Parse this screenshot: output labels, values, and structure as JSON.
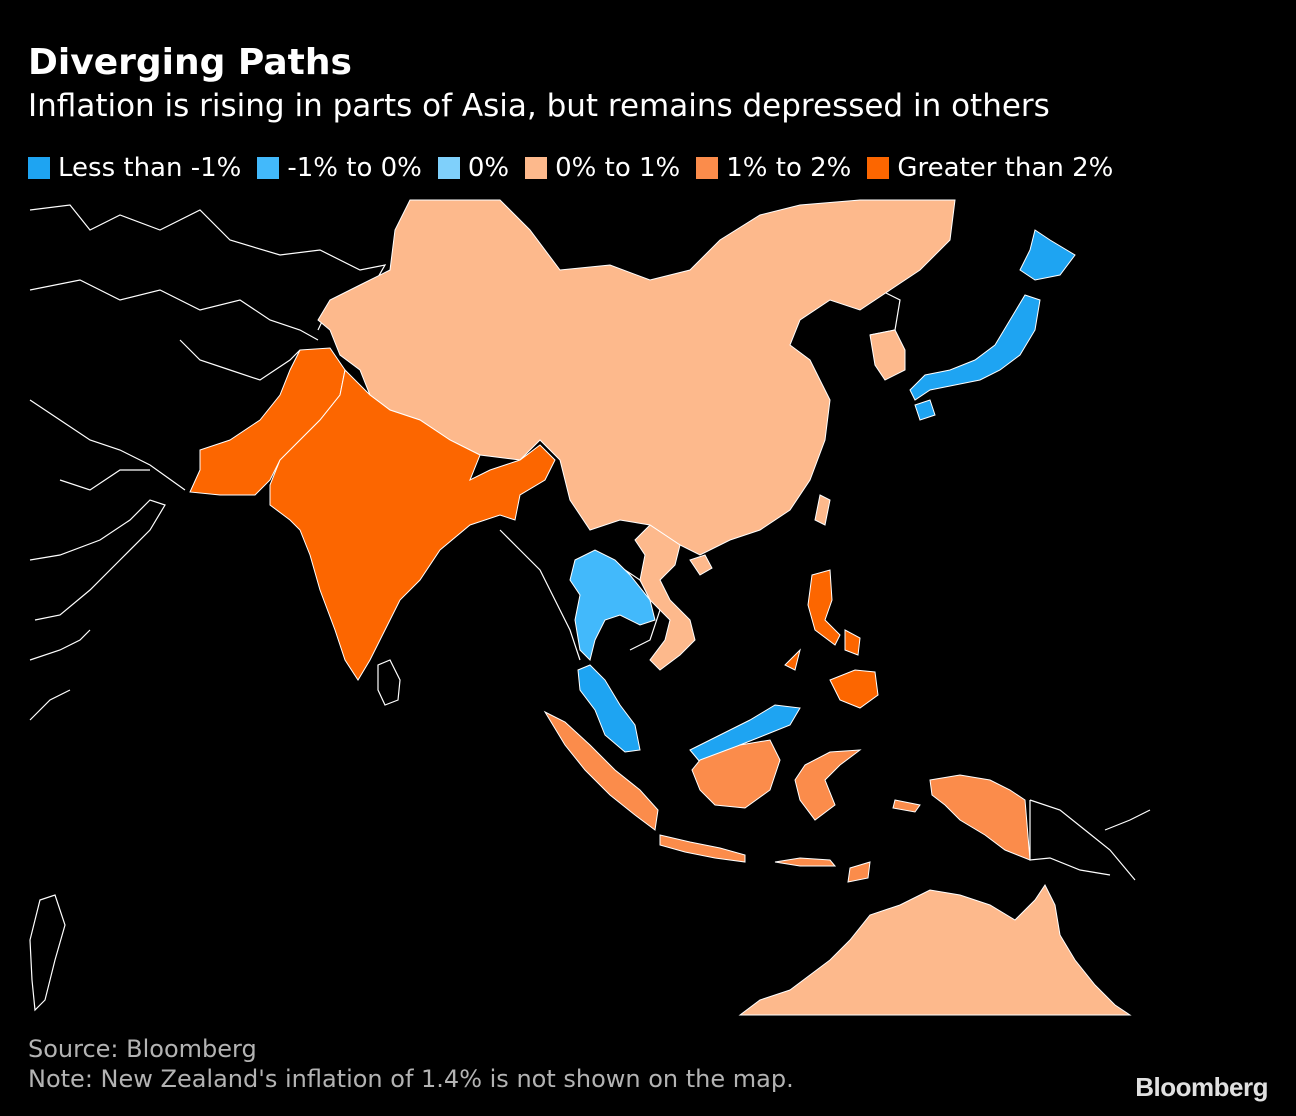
{
  "header": {
    "title": "Diverging Paths",
    "subtitle": "Inflation is rising in parts of Asia, but remains depressed in others"
  },
  "legend": [
    {
      "label": "Less than -1%",
      "color": "#1ea4f2"
    },
    {
      "label": "-1% to 0%",
      "color": "#42b9fb"
    },
    {
      "label": "0%",
      "color": "#7fd0fb"
    },
    {
      "label": "0% to 1%",
      "color": "#fdb98c"
    },
    {
      "label": "1% to 2%",
      "color": "#fb8c4b"
    },
    {
      "label": "Greater than 2%",
      "color": "#fc6600"
    }
  ],
  "map": {
    "regions": [
      {
        "name": "China",
        "category": "0% to 1%"
      },
      {
        "name": "South Korea",
        "category": "0% to 1%"
      },
      {
        "name": "Vietnam",
        "category": "0% to 1%"
      },
      {
        "name": "Australia",
        "category": "0% to 1%"
      },
      {
        "name": "Japan",
        "category": "Less than -1%"
      },
      {
        "name": "Malaysia",
        "category": "Less than -1%"
      },
      {
        "name": "Thailand",
        "category": "-1% to 0%"
      },
      {
        "name": "Indonesia",
        "category": "1% to 2%"
      },
      {
        "name": "India",
        "category": "Greater than 2%"
      },
      {
        "name": "Pakistan",
        "category": "Greater than 2%"
      },
      {
        "name": "Philippines",
        "category": "Greater than 2%"
      }
    ]
  },
  "footer": {
    "source": "Source: Bloomberg",
    "note": "Note: New Zealand's inflation of 1.4% is not shown on the map.",
    "brand": "Bloomberg"
  }
}
